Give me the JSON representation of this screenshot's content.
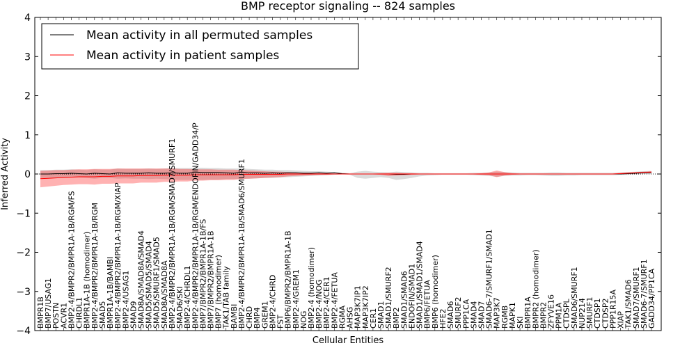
{
  "chart_data": {
    "type": "line",
    "title": "BMP receptor signaling -- 824 samples",
    "xlabel": "Cellular Entities",
    "ylabel": "Inferred Activity",
    "ylim": [
      -4,
      4
    ],
    "yticks": [
      -4,
      -3,
      -2,
      -1,
      0,
      1,
      2,
      3,
      4
    ],
    "grid": false,
    "legend_position": "top-left",
    "categories": [
      "BMPR1B",
      "BMP7/USAG1",
      "POSTN",
      "ACVR1",
      "BMP2-4/BMPR2/BMPR1A-1B/RGM/FS",
      "CHRDL1",
      "BMPR1A-1B (homodimer)",
      "BMP2-4/BMPR2/BMPR1A-1B/RGM",
      "SMAD5",
      "BMPR1A-1B/BAMBI",
      "BMP2-4/BMPR2/BMPR1A-1B/RGM/XIAP",
      "BMP2-4/USAG1",
      "SMAD9",
      "SMAD8A/SMAD8A/SMAD4",
      "SMAD5/SMAD5/SMAD4",
      "SMAD5/SMURF1/SMAD5",
      "SMAD8A/SMAD8A",
      "BMP2-4/BMPR2/BMPR1A-1B/RGM/SMAD7/SMURF1",
      "SMAD6/SKI",
      "BMP2-4/CHRDL1",
      "BMP2-4/BMPR2/BMPR1A-1B/RGM/ENDOFIN/GADD34/P",
      "BMP7/BMPR2/BMPR1A-1B/FS",
      "BMP7/BMPR2/BMPR1A-1B",
      "BMP7 (homodimer)",
      "TAK1/TAB family",
      "BAMBI",
      "BMP2-4/BMPR2/BMPR1A-1B/SMAD6/SMURF1",
      "CHRD",
      "BMP4",
      "GREM1",
      "BMP2-4/CHRD",
      "FST",
      "BMP6/BMPR2/BMPR1A-1B",
      "BMP2-4/GREM1",
      "NOG",
      "BMP2-4 (homodimer)",
      "BMP2-4/NOG",
      "BMP2-4/CER1",
      "BMP2-4/FETUA",
      "RGMA",
      "AHSG",
      "MAP3K7IP1",
      "MAP3K7IP2",
      "CER1",
      "SMAD1",
      "SMAD1/SMURF2",
      "BMP2",
      "SMAD1/SMAD6",
      "ENDOFIN/SMAD1",
      "SMAD1/SMAD1/SMAD4",
      "BMP6/FETUA",
      "BMP6 (homodimer)",
      "HFE2",
      "SMAD6",
      "SMURF2",
      "PPP1CA",
      "SMAD4",
      "SMAD7",
      "SMAD6-7/SMURF1/SMAD1",
      "MAP3K7",
      "RGMB",
      "MAPK1",
      "SKI",
      "BMPR1A",
      "BMPR2 (homodimer)",
      "BMPR2",
      "ZFYVE16",
      "PPM1A",
      "CTDSPL",
      "SMAD6/SMURF1",
      "NUP214",
      "SMURF1",
      "CTDSP1",
      "CTDSP2",
      "PPP1R15A",
      "XIAP",
      "TAK1/SMAD6",
      "SMAD7/SMURF1",
      "SMAD6-7/SMURF1",
      "GADD34/PP1CA"
    ],
    "series": [
      {
        "name": "Mean activity in all permuted samples",
        "color": "#000000",
        "values": [
          0.0,
          0.0,
          0.01,
          0.01,
          0.02,
          0.01,
          0.0,
          0.02,
          0.01,
          0.0,
          0.03,
          0.02,
          0.02,
          0.02,
          0.03,
          0.02,
          0.02,
          0.03,
          0.02,
          0.02,
          0.05,
          0.04,
          0.04,
          0.04,
          0.03,
          0.02,
          0.05,
          0.03,
          0.03,
          0.02,
          0.03,
          0.02,
          0.03,
          0.03,
          0.02,
          0.02,
          0.03,
          0.02,
          0.03,
          0.01,
          0.0,
          0.0,
          0.0,
          0.0,
          0.0,
          0.0,
          -0.01,
          -0.01,
          0.0,
          0.0,
          0.0,
          0.0,
          0.0,
          0.0,
          0.0,
          0.0,
          0.0,
          0.0,
          0.0,
          0.0,
          0.0,
          0.0,
          0.0,
          0.0,
          0.0,
          0.0,
          0.0,
          0.0,
          0.0,
          0.0,
          0.0,
          0.0,
          0.0,
          0.0,
          0.0,
          0.0,
          0.01,
          0.02,
          0.03,
          0.04
        ],
        "band_lower": [
          -0.1,
          -0.1,
          -0.1,
          -0.1,
          -0.09,
          -0.09,
          -0.1,
          -0.12,
          -0.1,
          -0.1,
          -0.12,
          -0.11,
          -0.12,
          -0.12,
          -0.13,
          -0.12,
          -0.13,
          -0.14,
          -0.15,
          -0.15,
          -0.15,
          -0.15,
          -0.14,
          -0.14,
          -0.13,
          -0.13,
          -0.12,
          -0.12,
          -0.11,
          -0.1,
          -0.1,
          -0.09,
          -0.08,
          -0.07,
          -0.06,
          -0.05,
          -0.04,
          -0.03,
          -0.02,
          -0.01,
          -0.02,
          -0.1,
          -0.12,
          -0.1,
          -0.08,
          -0.1,
          -0.15,
          -0.13,
          -0.1,
          -0.06,
          -0.04,
          -0.03,
          -0.02,
          -0.02,
          -0.02,
          -0.02,
          -0.03,
          -0.04,
          -0.05,
          -0.07,
          -0.05,
          -0.04,
          -0.04,
          -0.03,
          -0.03,
          -0.04,
          -0.05,
          -0.05,
          -0.04,
          -0.04,
          -0.03,
          -0.03,
          -0.03,
          -0.03,
          -0.03,
          -0.02,
          -0.02,
          -0.01,
          0.0,
          0.0
        ],
        "band_upper": [
          0.1,
          0.1,
          0.11,
          0.11,
          0.12,
          0.11,
          0.1,
          0.12,
          0.11,
          0.11,
          0.14,
          0.13,
          0.13,
          0.13,
          0.14,
          0.13,
          0.14,
          0.15,
          0.15,
          0.15,
          0.16,
          0.16,
          0.15,
          0.15,
          0.14,
          0.14,
          0.14,
          0.13,
          0.12,
          0.11,
          0.11,
          0.1,
          0.1,
          0.09,
          0.08,
          0.07,
          0.07,
          0.06,
          0.05,
          0.03,
          0.02,
          0.06,
          0.08,
          0.06,
          0.05,
          0.04,
          0.06,
          0.05,
          0.04,
          0.03,
          0.03,
          0.02,
          0.02,
          0.02,
          0.02,
          0.02,
          0.03,
          0.03,
          0.04,
          0.06,
          0.05,
          0.04,
          0.03,
          0.03,
          0.03,
          0.03,
          0.04,
          0.04,
          0.03,
          0.03,
          0.03,
          0.03,
          0.03,
          0.03,
          0.03,
          0.04,
          0.05,
          0.06,
          0.07,
          0.08
        ]
      },
      {
        "name": "Mean activity in patient samples",
        "color": "#ff0000",
        "values": [
          -0.12,
          -0.11,
          -0.1,
          -0.09,
          -0.08,
          -0.07,
          -0.07,
          -0.07,
          -0.06,
          -0.06,
          -0.05,
          -0.05,
          -0.05,
          -0.04,
          -0.04,
          -0.04,
          -0.03,
          -0.03,
          -0.03,
          -0.03,
          -0.02,
          -0.02,
          -0.02,
          -0.02,
          -0.02,
          -0.02,
          -0.01,
          -0.01,
          -0.01,
          -0.01,
          -0.01,
          -0.01,
          0.0,
          0.0,
          0.0,
          0.0,
          0.0,
          0.0,
          0.0,
          0.0,
          0.0,
          0.0,
          0.0,
          0.0,
          0.0,
          0.0,
          0.0,
          0.0,
          0.0,
          0.0,
          0.0,
          0.0,
          0.0,
          0.0,
          0.0,
          0.0,
          0.0,
          0.0,
          0.0,
          0.0,
          0.0,
          0.0,
          0.0,
          0.0,
          0.0,
          0.0,
          0.0,
          0.0,
          0.0,
          0.0,
          0.0,
          0.0,
          0.0,
          0.0,
          0.0,
          0.01,
          0.02,
          0.03,
          0.04,
          0.05
        ],
        "band_lower": [
          -0.34,
          -0.32,
          -0.3,
          -0.28,
          -0.27,
          -0.26,
          -0.26,
          -0.27,
          -0.25,
          -0.25,
          -0.24,
          -0.24,
          -0.24,
          -0.22,
          -0.22,
          -0.22,
          -0.2,
          -0.2,
          -0.19,
          -0.19,
          -0.17,
          -0.17,
          -0.16,
          -0.16,
          -0.15,
          -0.15,
          -0.13,
          -0.12,
          -0.11,
          -0.1,
          -0.09,
          -0.08,
          -0.06,
          -0.05,
          -0.04,
          -0.03,
          -0.02,
          -0.02,
          -0.01,
          -0.01,
          -0.01,
          -0.01,
          -0.01,
          -0.01,
          -0.02,
          -0.05,
          -0.04,
          -0.03,
          -0.02,
          -0.01,
          -0.01,
          -0.01,
          -0.01,
          -0.01,
          -0.01,
          -0.01,
          -0.01,
          -0.02,
          -0.03,
          -0.08,
          -0.04,
          -0.02,
          -0.01,
          -0.01,
          -0.01,
          -0.01,
          -0.01,
          -0.01,
          -0.01,
          -0.01,
          -0.01,
          -0.01,
          -0.01,
          -0.01,
          -0.01,
          0.0,
          0.01,
          0.02,
          0.03,
          0.03
        ],
        "band_upper": [
          0.08,
          0.09,
          0.1,
          0.1,
          0.11,
          0.12,
          0.12,
          0.13,
          0.13,
          0.13,
          0.14,
          0.14,
          0.14,
          0.14,
          0.14,
          0.14,
          0.14,
          0.14,
          0.13,
          0.13,
          0.12,
          0.12,
          0.12,
          0.11,
          0.11,
          0.11,
          0.1,
          0.09,
          0.08,
          0.07,
          0.06,
          0.06,
          0.05,
          0.04,
          0.03,
          0.03,
          0.02,
          0.02,
          0.01,
          0.01,
          0.01,
          0.01,
          0.01,
          0.01,
          0.02,
          0.03,
          0.03,
          0.02,
          0.02,
          0.01,
          0.01,
          0.01,
          0.01,
          0.01,
          0.01,
          0.01,
          0.01,
          0.02,
          0.04,
          0.09,
          0.05,
          0.02,
          0.01,
          0.01,
          0.01,
          0.01,
          0.01,
          0.01,
          0.01,
          0.01,
          0.01,
          0.01,
          0.01,
          0.01,
          0.01,
          0.03,
          0.04,
          0.05,
          0.06,
          0.07
        ]
      }
    ]
  }
}
